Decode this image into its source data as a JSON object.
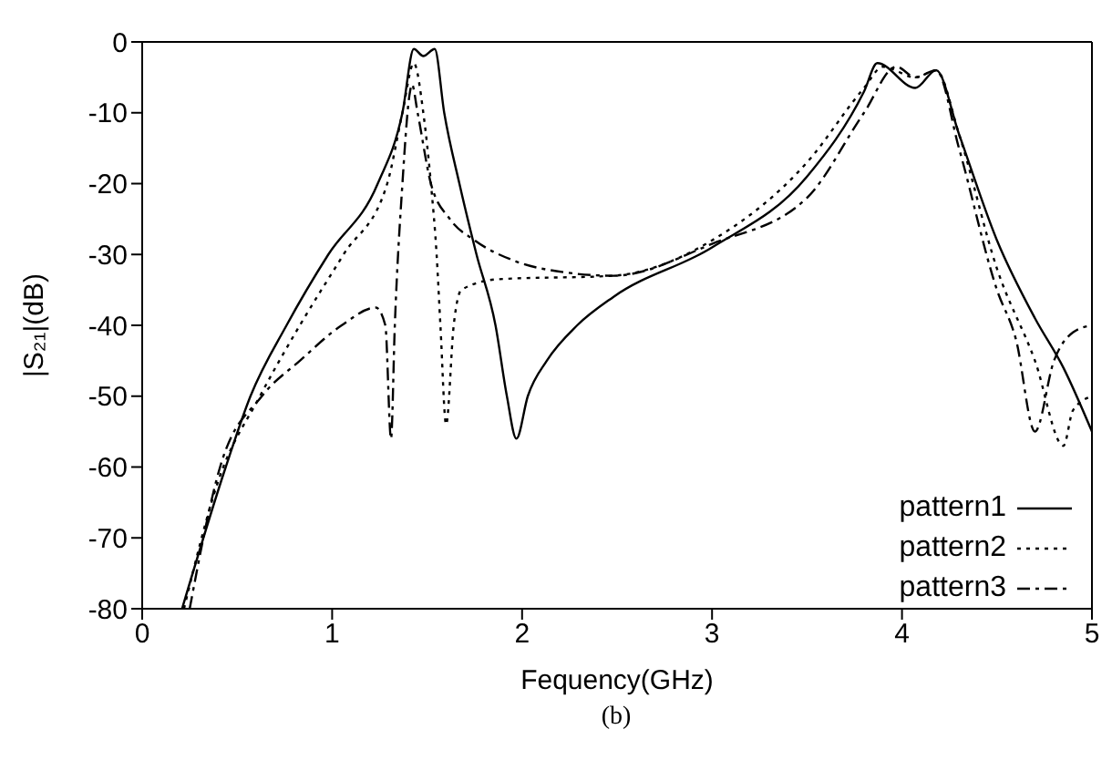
{
  "chart_data": {
    "type": "line",
    "xlabel": "Fequency(GHz)",
    "ylabel": "|S₂₁|(dB)",
    "annotations": [
      "(b)"
    ],
    "xlim": [
      0,
      5
    ],
    "xticks": [
      0,
      1,
      2,
      3,
      4,
      5
    ],
    "ylim": [
      -80,
      0
    ],
    "yticks": [
      -80,
      -70,
      -60,
      -50,
      -40,
      -30,
      -20,
      -10,
      0
    ],
    "legend": "bottom right",
    "marker": "none",
    "series": [
      {
        "name": "pattern1",
        "color": "#000000",
        "line_style": "solid",
        "x": [
          0.21,
          0.44,
          0.57,
          0.76,
          0.98,
          1.24,
          1.37,
          1.43,
          1.48,
          1.54,
          1.59,
          1.67,
          1.76,
          1.86,
          1.92,
          1.97,
          2.03,
          2.13,
          2.29,
          2.48,
          3.0,
          3.5,
          3.8,
          3.87,
          4.07,
          4.18,
          4.3,
          4.5,
          4.7,
          4.85,
          5.0
        ],
        "values": [
          -80,
          -60,
          -50,
          -40,
          -30,
          -20,
          -10,
          -1,
          -2,
          -1,
          -10,
          -20,
          -30,
          -40,
          -50,
          -56,
          -50,
          -45,
          -40,
          -36,
          -29,
          -19,
          -7,
          -3,
          -6.5,
          -4,
          -13,
          -28,
          -39,
          -46,
          -55
        ]
      },
      {
        "name": "pattern2",
        "color": "#000000",
        "line_style": "dotted",
        "x": [
          0.22,
          0.4,
          0.62,
          0.83,
          1.06,
          1.29,
          1.37,
          1.43,
          1.48,
          1.52,
          1.55,
          1.57,
          1.6,
          1.64,
          1.68,
          1.87,
          2.48,
          3.0,
          3.5,
          3.8,
          3.9,
          4.07,
          4.18,
          4.3,
          4.5,
          4.7,
          4.85,
          4.9,
          5.0
        ],
        "values": [
          -80,
          -62,
          -50,
          -40,
          -30,
          -20,
          -10,
          -3,
          -10,
          -20,
          -30,
          -40,
          -54,
          -40,
          -35,
          -33.5,
          -33,
          -28,
          -17,
          -6.5,
          -3.5,
          -5,
          -4,
          -13,
          -32,
          -45,
          -57,
          -52,
          -50
        ]
      },
      {
        "name": "pattern3",
        "color": "#000000",
        "line_style": "dashed",
        "x": [
          0.25,
          0.41,
          0.63,
          0.83,
          1.05,
          1.23,
          1.28,
          1.31,
          1.33,
          1.37,
          1.41,
          1.42,
          1.45,
          1.52,
          1.62,
          1.75,
          1.97,
          2.22,
          2.48,
          3.0,
          3.5,
          3.8,
          3.97,
          4.07,
          4.18,
          4.3,
          4.5,
          4.6,
          4.7,
          4.8,
          4.9,
          5.0
        ],
        "values": [
          -80,
          -60,
          -50,
          -45,
          -40,
          -37.5,
          -40,
          -56,
          -40,
          -20,
          -7,
          -6,
          -10,
          -20,
          -25,
          -28,
          -31,
          -32.5,
          -33,
          -28.5,
          -22,
          -10,
          -3.5,
          -5,
          -4,
          -15,
          -35,
          -42,
          -55,
          -45,
          -41,
          -40
        ]
      }
    ]
  }
}
